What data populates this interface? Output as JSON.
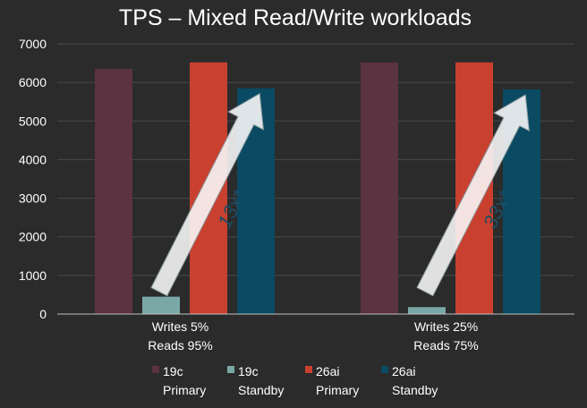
{
  "chart_data": {
    "type": "bar",
    "title": "TPS – Mixed Read/Write workloads",
    "categories": [
      [
        "Writes 5%",
        "Reads 95%"
      ],
      [
        "Writes 25%",
        "Reads 75%"
      ]
    ],
    "series": [
      {
        "name": [
          "19c",
          "Primary"
        ],
        "color": "#5c3340",
        "values": [
          6350,
          6520
        ]
      },
      {
        "name": [
          "19c",
          "Standby"
        ],
        "color": "#7aa8a6",
        "values": [
          450,
          180
        ]
      },
      {
        "name": [
          "26ai",
          "Primary"
        ],
        "color": "#c9402f",
        "values": [
          6520,
          6520
        ]
      },
      {
        "name": [
          "26ai",
          "Standby"
        ],
        "color": "#0a4a62",
        "values": [
          5850,
          5820
        ]
      }
    ],
    "ylim": [
      0,
      7000
    ],
    "yticks": [
      0,
      1000,
      2000,
      3000,
      4000,
      5000,
      6000,
      7000
    ],
    "grid": true,
    "legend": "bottom",
    "annotations": [
      "13x*",
      "33x*"
    ]
  }
}
